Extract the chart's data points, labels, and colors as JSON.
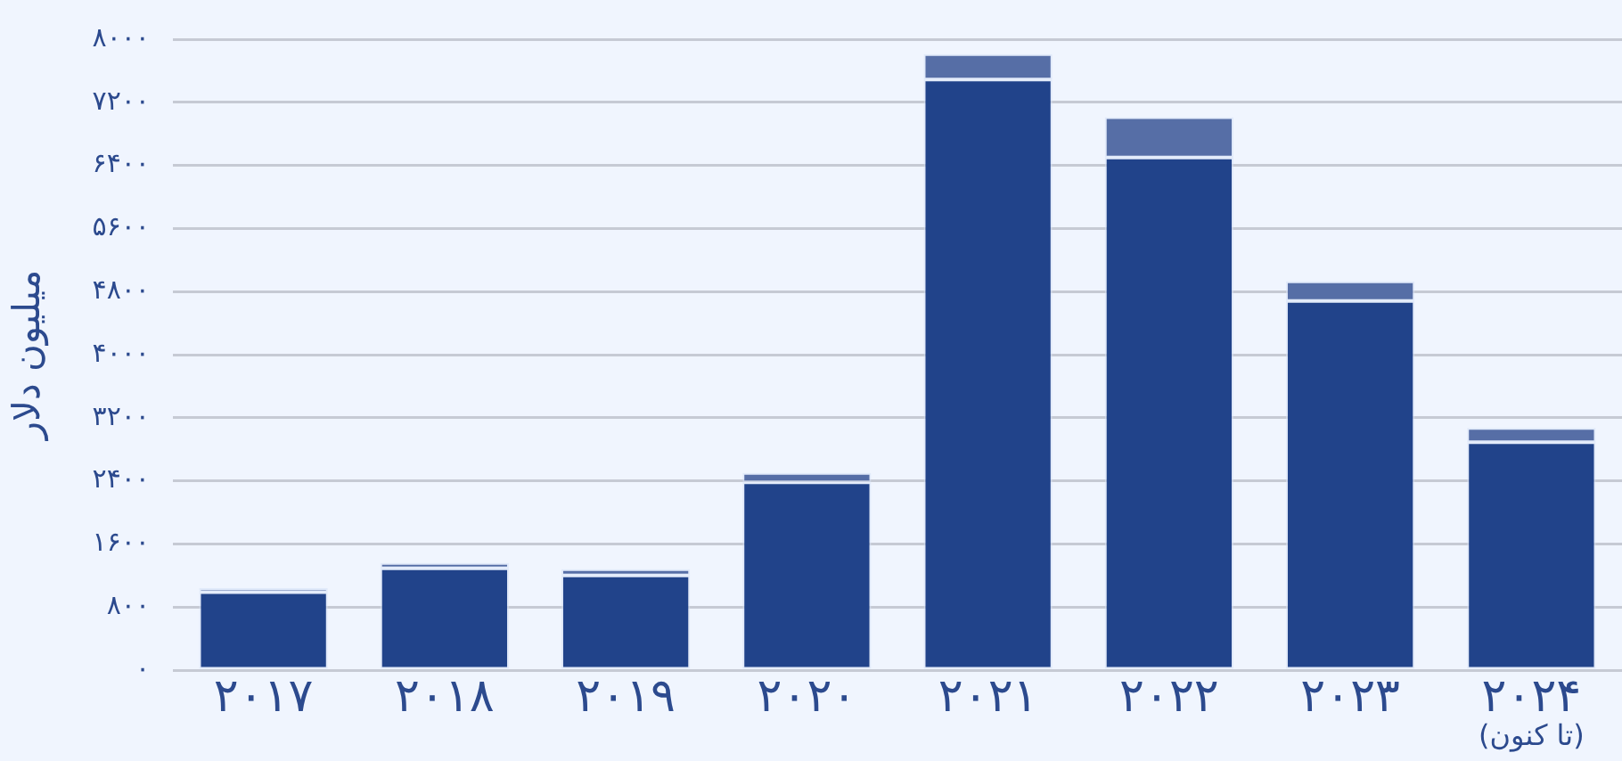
{
  "chart_data": {
    "type": "bar",
    "stacked": true,
    "ylabel": "میلیون دلار",
    "categories": [
      "۲۰۱۷",
      "۲۰۱۸",
      "۲۰۱۹",
      "۲۰۲۰",
      "۲۰۲۱",
      "۲۰۲۲",
      "۲۰۲۳",
      "۲۰۲۴\n(تا کنون)"
    ],
    "series": [
      {
        "color": "#21438a",
        "values": [
          990,
          1290,
          1200,
          2380,
          7490,
          6500,
          4680,
          2890
        ]
      },
      {
        "color": "#566ea6",
        "values": [
          50,
          70,
          80,
          120,
          320,
          510,
          250,
          180
        ]
      }
    ],
    "ylim": [
      0,
      8000
    ],
    "yticks": [
      {
        "value": 0,
        "label": "۰"
      },
      {
        "value": 800,
        "label": "۸۰۰"
      },
      {
        "value": 1600,
        "label": "۱۶۰۰"
      },
      {
        "value": 2400,
        "label": "۲۴۰۰"
      },
      {
        "value": 3200,
        "label": "۳۲۰۰"
      },
      {
        "value": 4000,
        "label": "۴۰۰۰"
      },
      {
        "value": 4800,
        "label": "۴۸۰۰"
      },
      {
        "value": 5600,
        "label": "۵۶۰۰"
      },
      {
        "value": 6400,
        "label": "۶۴۰۰"
      },
      {
        "value": 7200,
        "label": "۷۲۰۰"
      },
      {
        "value": 8000,
        "label": "۸۰۰۰"
      }
    ],
    "grid": "y"
  }
}
